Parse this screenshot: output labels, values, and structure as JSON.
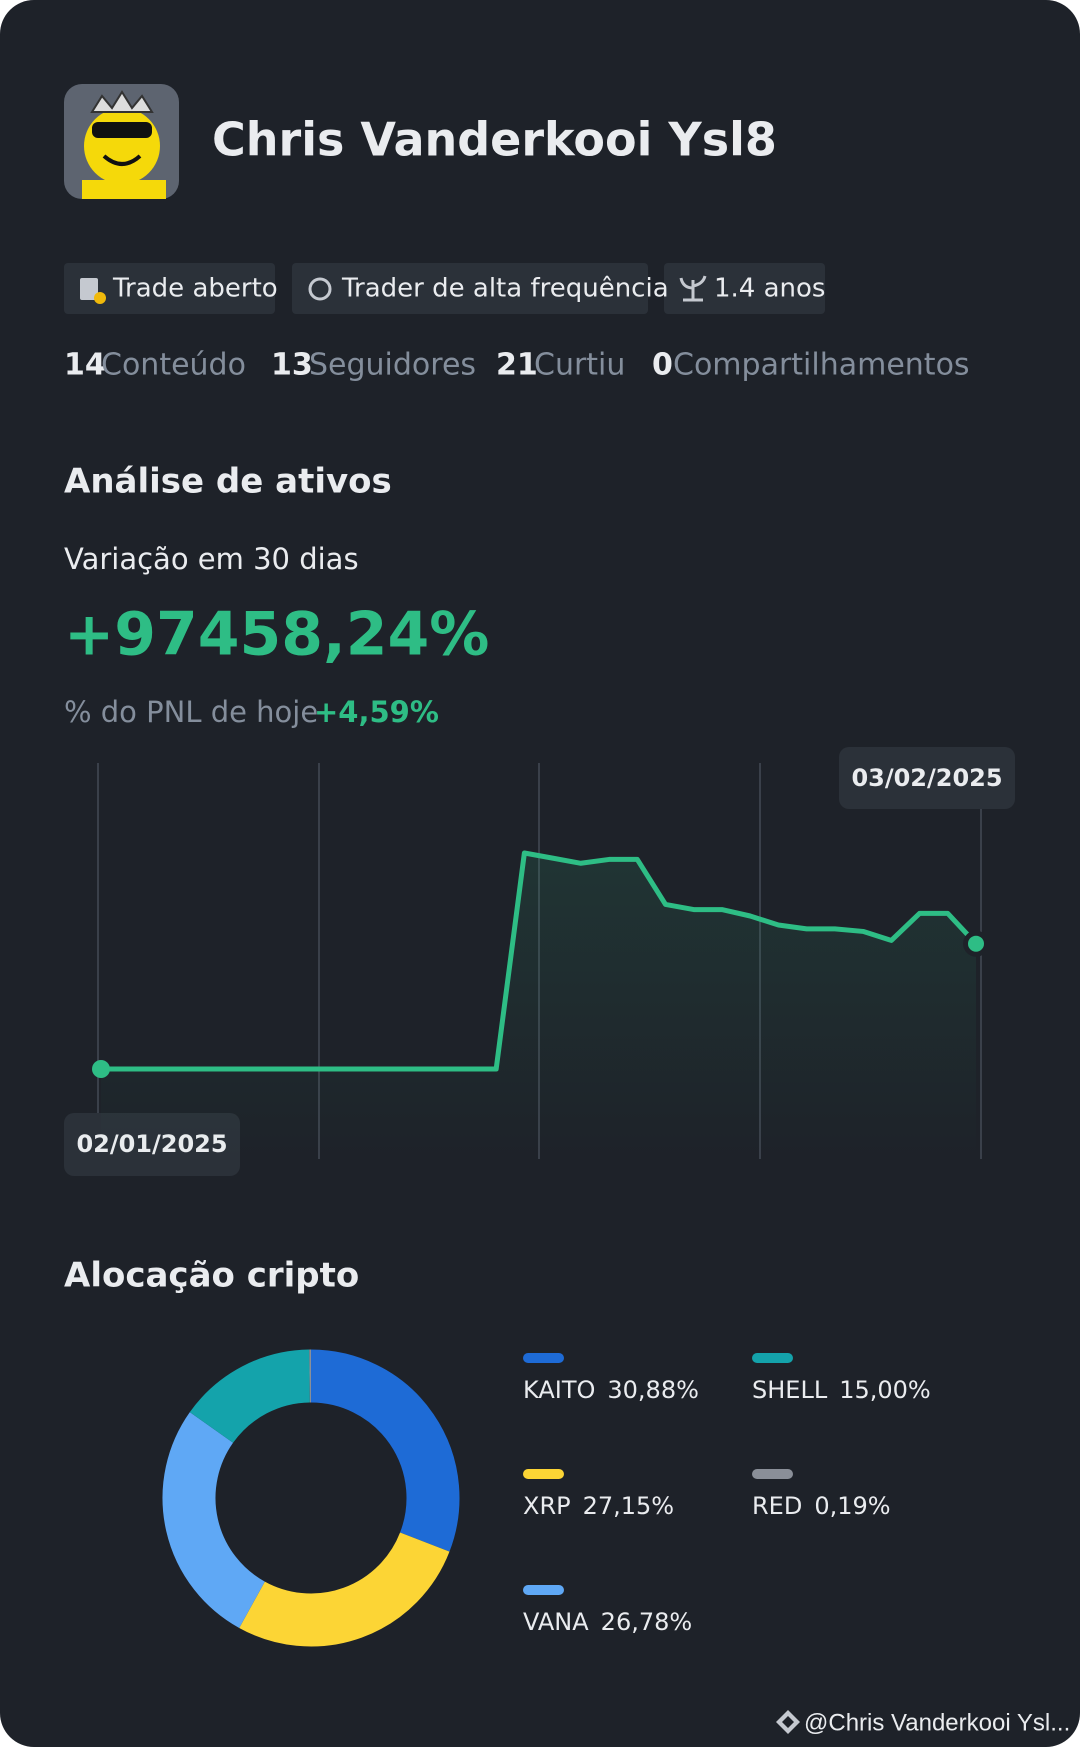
{
  "profile": {
    "name": "Chris Vanderkooi Ysl8",
    "tags": [
      "Trade aberto",
      "Trader de alta frequência",
      "1.4 anos"
    ],
    "stats": [
      {
        "value": 14,
        "label": "Conteúdo"
      },
      {
        "value": 13,
        "label": "Seguidores"
      },
      {
        "value": 21,
        "label": "Curtiu"
      },
      {
        "value": 0,
        "label": "Compartilhamentos"
      }
    ]
  },
  "analysis": {
    "title": "Análise de ativos",
    "period_label": "Variação em 30 dias",
    "variation": "+97458,24%",
    "today_label": "% do PNL de hoje",
    "today_value": "+4,59%"
  },
  "allocation_title": "Alocação cripto",
  "chart_data": [
    {
      "type": "line",
      "color": "#2ebd85",
      "categories": [
        "02/01/2025",
        null,
        null,
        null,
        null,
        null,
        null,
        null,
        null,
        null,
        null,
        null,
        null,
        null,
        null,
        null,
        null,
        null,
        null,
        null,
        null,
        null,
        null,
        null,
        null,
        null,
        null,
        null,
        null,
        null,
        null,
        "03/02/2025"
      ],
      "values": [
        0,
        0,
        0,
        0,
        0,
        0,
        0,
        0,
        0,
        0,
        0,
        0,
        0,
        0,
        0,
        168000,
        164000,
        160000,
        163000,
        163000,
        128000,
        124000,
        124000,
        119000,
        112000,
        109000,
        109000,
        107000,
        100000,
        121000,
        121000,
        97458.24
      ]
    },
    {
      "type": "pie",
      "categories": [
        "KAITO",
        "XRP",
        "VANA",
        "SHELL",
        "RED"
      ],
      "values": [
        30.88,
        27.15,
        26.78,
        15.0,
        0.19
      ],
      "value_labels": [
        "30,88%",
        "27,15%",
        "26,78%",
        "15,00%",
        "0,19%"
      ],
      "colors": [
        "#1e6bd6",
        "#fcd535",
        "#5fa8f5",
        "#14a3ab",
        "#8a8f98"
      ]
    }
  ],
  "footer": "@Chris Vanderkooi Ysl..."
}
